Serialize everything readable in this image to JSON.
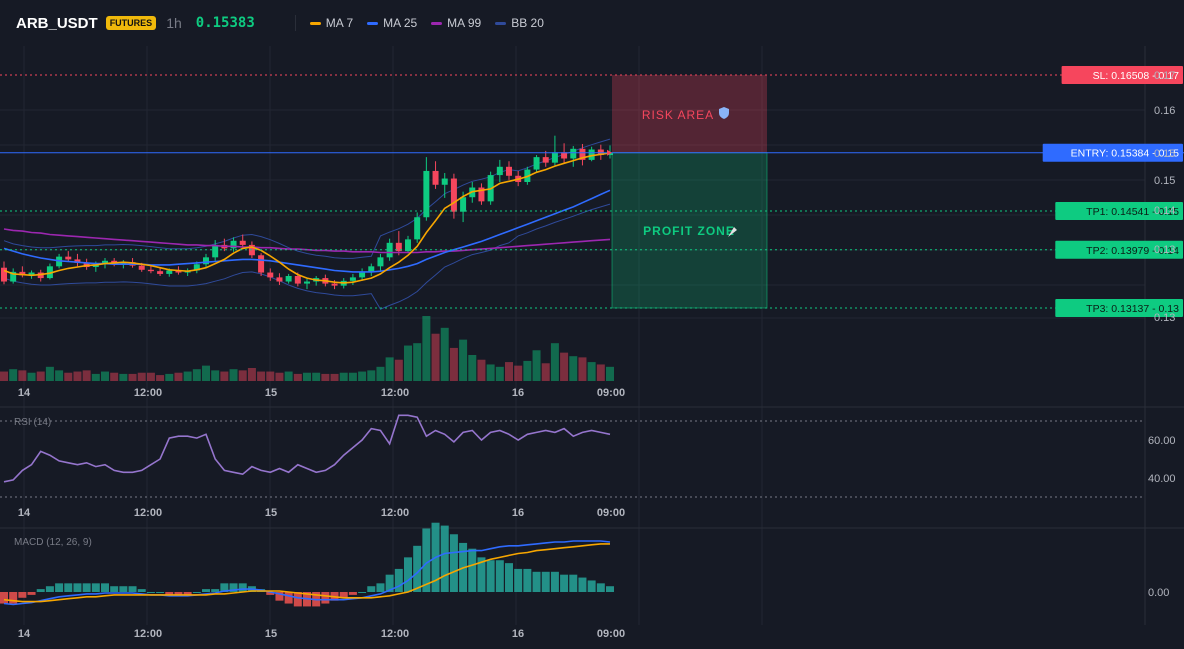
{
  "header": {
    "symbol": "ARB_USDT",
    "badge": "FUTURES",
    "timeframe": "1h",
    "last_price": "0.15383",
    "legend": [
      {
        "name": "MA 7",
        "color": "#f7a600"
      },
      {
        "name": "MA 25",
        "color": "#2f6bff"
      },
      {
        "name": "MA 99",
        "color": "#9c27b0"
      },
      {
        "name": "BB 20",
        "color": "#2f4a9a"
      }
    ]
  },
  "x_ticks": [
    "14",
    "12:00",
    "15",
    "12:00",
    "16",
    "09:00"
  ],
  "price_ticks": [
    "0.17",
    "0.16",
    "0.15",
    "0.15",
    "0.14",
    "0.13",
    "0.13"
  ],
  "levels": [
    {
      "label": "SL: 0.16508",
      "tick": "0.17",
      "value": 0.16508,
      "kind": "sl",
      "color": "#f6465d"
    },
    {
      "label": "ENTRY: 0.15384",
      "tick": "0.15",
      "value": 0.15384,
      "kind": "entry",
      "color": "#2f6bff"
    },
    {
      "label": "TP1: 0.14541",
      "tick": "0.15",
      "value": 0.14541,
      "kind": "tp",
      "color": "#0ecb81"
    },
    {
      "label": "TP2: 0.13979",
      "tick": "0.14",
      "value": 0.13979,
      "kind": "tp",
      "color": "#0ecb81"
    },
    {
      "label": "TP3: 0.13137",
      "tick": "0.13",
      "value": 0.13137,
      "kind": "tp",
      "color": "#0ecb81"
    }
  ],
  "zones": {
    "risk": "RISK AREA",
    "profit": "PROFIT ZONE"
  },
  "rsi": {
    "title": "RSI (14)",
    "ticks": [
      "60.00",
      "40.00"
    ]
  },
  "macd": {
    "title": "MACD (12, 26, 9)",
    "ticks": [
      "0.00"
    ]
  },
  "colors": {
    "up": "#0ecb81",
    "down": "#f6465d",
    "grid": "#222632",
    "text": "#b2b5be"
  },
  "chart_data": {
    "type": "candlestick",
    "candles": [
      [
        0.1372,
        0.1381,
        0.1348,
        0.1352
      ],
      [
        0.1352,
        0.1371,
        0.1349,
        0.1366
      ],
      [
        0.1366,
        0.1374,
        0.1358,
        0.1361
      ],
      [
        0.1361,
        0.1368,
        0.1356,
        0.1365
      ],
      [
        0.1365,
        0.1369,
        0.1352,
        0.1357
      ],
      [
        0.1357,
        0.1378,
        0.1355,
        0.1374
      ],
      [
        0.1374,
        0.1392,
        0.1371,
        0.1388
      ],
      [
        0.1388,
        0.1396,
        0.1381,
        0.1384
      ],
      [
        0.1384,
        0.1392,
        0.1374,
        0.1379
      ],
      [
        0.1379,
        0.1385,
        0.1369,
        0.1373
      ],
      [
        0.1373,
        0.1381,
        0.1366,
        0.1377
      ],
      [
        0.1377,
        0.1386,
        0.1371,
        0.1382
      ],
      [
        0.1382,
        0.1386,
        0.1374,
        0.1377
      ],
      [
        0.1377,
        0.1383,
        0.1371,
        0.138
      ],
      [
        0.138,
        0.1386,
        0.1372,
        0.1375
      ],
      [
        0.1375,
        0.1379,
        0.1366,
        0.1369
      ],
      [
        0.1369,
        0.1376,
        0.1364,
        0.1367
      ],
      [
        0.1367,
        0.1373,
        0.136,
        0.1363
      ],
      [
        0.1363,
        0.1371,
        0.1359,
        0.1368
      ],
      [
        0.1368,
        0.1374,
        0.1362,
        0.1365
      ],
      [
        0.1365,
        0.1371,
        0.136,
        0.1368
      ],
      [
        0.1368,
        0.1381,
        0.1364,
        0.1377
      ],
      [
        0.1377,
        0.1392,
        0.1372,
        0.1387
      ],
      [
        0.1387,
        0.1412,
        0.1382,
        0.1405
      ],
      [
        0.1405,
        0.1414,
        0.1396,
        0.14
      ],
      [
        0.14,
        0.1416,
        0.1395,
        0.1411
      ],
      [
        0.1411,
        0.142,
        0.1402,
        0.1405
      ],
      [
        0.1405,
        0.141,
        0.1386,
        0.139
      ],
      [
        0.139,
        0.1393,
        0.136,
        0.1365
      ],
      [
        0.1365,
        0.1371,
        0.1353,
        0.1358
      ],
      [
        0.1358,
        0.1364,
        0.1347,
        0.1352
      ],
      [
        0.1352,
        0.1363,
        0.1349,
        0.136
      ],
      [
        0.136,
        0.1365,
        0.1345,
        0.1349
      ],
      [
        0.1349,
        0.1356,
        0.1341,
        0.1352
      ],
      [
        0.1352,
        0.136,
        0.1346,
        0.1357
      ],
      [
        0.1357,
        0.1362,
        0.1345,
        0.1349
      ],
      [
        0.1349,
        0.1354,
        0.1341,
        0.1346
      ],
      [
        0.1346,
        0.1357,
        0.1342,
        0.1353
      ],
      [
        0.1353,
        0.1363,
        0.1347,
        0.1358
      ],
      [
        0.1358,
        0.1371,
        0.1353,
        0.1366
      ],
      [
        0.1366,
        0.1378,
        0.136,
        0.1374
      ],
      [
        0.1374,
        0.1392,
        0.1368,
        0.1387
      ],
      [
        0.1387,
        0.1414,
        0.1382,
        0.1408
      ],
      [
        0.1408,
        0.1425,
        0.139,
        0.1396
      ],
      [
        0.1396,
        0.1418,
        0.1393,
        0.1413
      ],
      [
        0.1413,
        0.1452,
        0.1408,
        0.1445
      ],
      [
        0.1445,
        0.1532,
        0.144,
        0.1512
      ],
      [
        0.1512,
        0.1526,
        0.1486,
        0.1492
      ],
      [
        0.1492,
        0.1509,
        0.1473,
        0.1501
      ],
      [
        0.1501,
        0.1508,
        0.1443,
        0.1453
      ],
      [
        0.1453,
        0.1482,
        0.1438,
        0.1474
      ],
      [
        0.1474,
        0.1496,
        0.1466,
        0.1488
      ],
      [
        0.1488,
        0.1494,
        0.1463,
        0.1468
      ],
      [
        0.1468,
        0.1511,
        0.1463,
        0.1506
      ],
      [
        0.1506,
        0.1528,
        0.1496,
        0.1518
      ],
      [
        0.1518,
        0.1526,
        0.1499,
        0.1505
      ],
      [
        0.1505,
        0.1512,
        0.149,
        0.1496
      ],
      [
        0.1496,
        0.1518,
        0.1492,
        0.1514
      ],
      [
        0.1514,
        0.1535,
        0.1509,
        0.1532
      ],
      [
        0.1532,
        0.1541,
        0.1518,
        0.1524
      ],
      [
        0.1524,
        0.1563,
        0.152,
        0.1539
      ],
      [
        0.1539,
        0.1552,
        0.1523,
        0.153
      ],
      [
        0.153,
        0.1548,
        0.1518,
        0.1544
      ],
      [
        0.1544,
        0.1551,
        0.152,
        0.1528
      ],
      [
        0.1528,
        0.1547,
        0.1526,
        0.1543
      ],
      [
        0.1543,
        0.155,
        0.1528,
        0.1535
      ],
      [
        0.1535,
        0.1549,
        0.153,
        0.1538
      ]
    ],
    "volume": [
      8,
      10,
      9,
      7,
      8,
      12,
      9,
      7,
      8,
      9,
      6,
      8,
      7,
      6,
      6,
      7,
      7,
      5,
      6,
      7,
      8,
      10,
      13,
      9,
      8,
      10,
      9,
      11,
      8,
      8,
      7,
      8,
      6,
      7,
      7,
      6,
      6,
      7,
      7,
      8,
      9,
      12,
      20,
      18,
      30,
      32,
      55,
      40,
      45,
      28,
      35,
      22,
      18,
      14,
      12,
      16,
      13,
      17,
      26,
      15,
      32,
      24,
      21,
      20,
      16,
      14,
      12
    ],
    "ma7": [
      0.1368,
      0.1363,
      0.1362,
      0.1361,
      0.1362,
      0.1364,
      0.1368,
      0.1371,
      0.1373,
      0.1375,
      0.1376,
      0.1378,
      0.1379,
      0.138,
      0.1379,
      0.1377,
      0.1375,
      0.1372,
      0.1369,
      0.1368,
      0.1367,
      0.1369,
      0.1372,
      0.1378,
      0.1384,
      0.1393,
      0.14,
      0.1402,
      0.1397,
      0.1389,
      0.138,
      0.137,
      0.1362,
      0.1357,
      0.1354,
      0.1353,
      0.1351,
      0.135,
      0.1351,
      0.1354,
      0.1357,
      0.1363,
      0.1372,
      0.138,
      0.139,
      0.1403,
      0.1423,
      0.144,
      0.1458,
      0.1466,
      0.1475,
      0.1482,
      0.1484,
      0.1486,
      0.1494,
      0.1497,
      0.15,
      0.1504,
      0.151,
      0.1514,
      0.1519,
      0.1523,
      0.1527,
      0.1531,
      0.1534,
      0.1536,
      0.1538
    ],
    "ma25": [
      0.14,
      0.1396,
      0.1392,
      0.1389,
      0.1386,
      0.1384,
      0.1382,
      0.1381,
      0.138,
      0.1379,
      0.1378,
      0.1378,
      0.1377,
      0.1377,
      0.1377,
      0.1377,
      0.1376,
      0.1376,
      0.1376,
      0.1377,
      0.1378,
      0.1379,
      0.138,
      0.1381,
      0.1382,
      0.1383,
      0.1384,
      0.1384,
      0.1383,
      0.1382,
      0.138,
      0.1378,
      0.1376,
      0.1374,
      0.1372,
      0.137,
      0.1368,
      0.1367,
      0.1366,
      0.1366,
      0.1366,
      0.1367,
      0.1369,
      0.1371,
      0.1374,
      0.1378,
      0.1384,
      0.1389,
      0.1394,
      0.1398,
      0.1402,
      0.1406,
      0.141,
      0.1415,
      0.142,
      0.1425,
      0.143,
      0.1435,
      0.144,
      0.1445,
      0.145,
      0.1455,
      0.146,
      0.1466,
      0.1472,
      0.1478,
      0.1484
    ],
    "ma99": [
      0.1428,
      0.1426,
      0.1425,
      0.1423,
      0.1422,
      0.142,
      0.1419,
      0.1418,
      0.1417,
      0.1416,
      0.1415,
      0.1414,
      0.1413,
      0.1412,
      0.1411,
      0.141,
      0.1409,
      0.1408,
      0.1407,
      0.1406,
      0.1405,
      0.1405,
      0.1404,
      0.1404,
      0.1403,
      0.1403,
      0.1402,
      0.1402,
      0.1401,
      0.1401,
      0.14,
      0.1399,
      0.1399,
      0.1398,
      0.1397,
      0.1397,
      0.1396,
      0.1396,
      0.1395,
      0.1395,
      0.1395,
      0.1394,
      0.1394,
      0.1394,
      0.1394,
      0.1394,
      0.1395,
      0.1395,
      0.1396,
      0.1396,
      0.1397,
      0.1398,
      0.1399,
      0.14,
      0.1401,
      0.1402,
      0.1403,
      0.1404,
      0.1405,
      0.1406,
      0.1407,
      0.1408,
      0.1409,
      0.141,
      0.1411,
      0.1412,
      0.1413
    ],
    "rsi": [
      38,
      39,
      44,
      47,
      54,
      52,
      49,
      48,
      47,
      48,
      46,
      47,
      44,
      43,
      43,
      44,
      47,
      50,
      61,
      62,
      62,
      61,
      63,
      50,
      44,
      43,
      42,
      46,
      44,
      43,
      45,
      43,
      47,
      45,
      43,
      44,
      47,
      52,
      56,
      60,
      66,
      65,
      58,
      73,
      73,
      72,
      62,
      65,
      63,
      59,
      64,
      65,
      60,
      64,
      65,
      63,
      60,
      63,
      64,
      65,
      64,
      66,
      62,
      64,
      65,
      64,
      63
    ],
    "macd": [
      -0.0012,
      -0.0013,
      -0.0012,
      -0.0011,
      -0.0009,
      -0.0007,
      -0.0005,
      -0.0004,
      -0.0003,
      -0.0002,
      -0.0002,
      -0.0001,
      -0.0001,
      -0.0001,
      -0.0001,
      -0.0002,
      -0.0003,
      -0.0003,
      -0.0004,
      -0.0004,
      -0.0004,
      -0.0003,
      -0.0002,
      -0.0001,
      0.0001,
      0.0002,
      0.0003,
      0.0003,
      0.0002,
      0.0,
      -0.0002,
      -0.0004,
      -0.0006,
      -0.0007,
      -0.0008,
      -0.0008,
      -0.0008,
      -0.0008,
      -0.0007,
      -0.0006,
      -0.0004,
      -0.0002,
      0.0002,
      0.0006,
      0.0012,
      0.002,
      0.003,
      0.0036,
      0.004,
      0.0041,
      0.0042,
      0.0043,
      0.0043,
      0.0045,
      0.0047,
      0.0048,
      0.0048,
      0.0049,
      0.005,
      0.0051,
      0.0052,
      0.0052,
      0.0053,
      0.0053,
      0.0053,
      0.0053,
      0.0052
    ],
    "macd_signal": [
      -0.0008,
      -0.0009,
      -0.001,
      -0.001,
      -0.001,
      -0.0009,
      -0.0008,
      -0.0007,
      -0.0006,
      -0.0005,
      -0.0005,
      -0.0004,
      -0.0003,
      -0.0003,
      -0.0003,
      -0.0003,
      -0.0003,
      -0.0003,
      -0.0003,
      -0.0003,
      -0.0003,
      -0.0003,
      -0.0003,
      -0.0002,
      -0.0002,
      -0.0001,
      0.0,
      0.0001,
      0.0001,
      0.0001,
      0.0001,
      0.0,
      -0.0001,
      -0.0002,
      -0.0003,
      -0.0004,
      -0.0005,
      -0.0006,
      -0.0006,
      -0.0006,
      -0.0006,
      -0.0005,
      -0.0004,
      -0.0002,
      0.0,
      0.0004,
      0.0008,
      0.0012,
      0.0017,
      0.0021,
      0.0025,
      0.0028,
      0.0031,
      0.0034,
      0.0036,
      0.0038,
      0.004,
      0.0041,
      0.0043,
      0.0044,
      0.0045,
      0.0046,
      0.0047,
      0.0048,
      0.0049,
      0.005,
      0.005
    ]
  }
}
